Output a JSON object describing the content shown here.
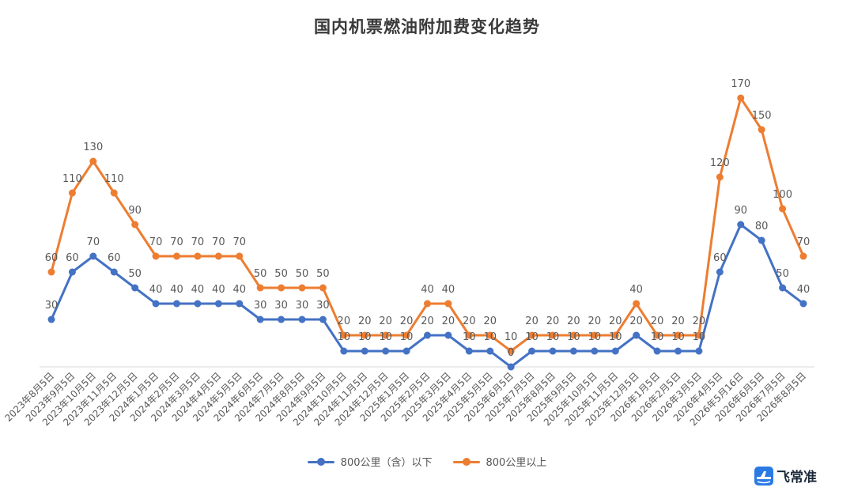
{
  "colors": {
    "series_1": "#4472c4",
    "series_2": "#ed7d31",
    "axis": "#d9d9d9",
    "label": "#595959"
  },
  "brand": {
    "name": "飞常准",
    "icon": "plane-logo-icon"
  },
  "chart_data": {
    "type": "line",
    "title": "国内机票燃油附加费变化趋势",
    "xlabel": "",
    "ylabel": "",
    "ylim": [
      0,
      170
    ],
    "grid": false,
    "legend_position": "bottom",
    "categories": [
      "2023年8月5日",
      "2023年9月5日",
      "2023年10月5日",
      "2023年11月5日",
      "2023年12月5日",
      "2024年1月5日",
      "2024年2月5日",
      "2024年3月5日",
      "2024年4月5日",
      "2024年5月5日",
      "2024年6月5日",
      "2024年7月5日",
      "2024年8月5日",
      "2024年9月5日",
      "2024年10月5日",
      "2024年11月5日",
      "2024年12月5日",
      "2025年1月5日",
      "2025年2月5日",
      "2025年3月5日",
      "2025年4月5日",
      "2025年5月5日",
      "2025年6月5日",
      "2025年7月5日",
      "2025年8月5日",
      "2025年9月5日",
      "2025年10月5日",
      "2025年11月5日",
      "2025年12月5日",
      "2026年1月5日",
      "2026年2月5日",
      "2026年3月5日",
      "2026年4月5日",
      "2026年5月16日",
      "2026年6月5日",
      "2026年7月5日",
      "2026年8月5日"
    ],
    "series": [
      {
        "name": "800公里（含）以下",
        "values": [
          30,
          60,
          70,
          60,
          50,
          40,
          40,
          40,
          40,
          40,
          30,
          30,
          30,
          30,
          10,
          10,
          10,
          10,
          20,
          20,
          10,
          10,
          0,
          10,
          10,
          10,
          10,
          10,
          20,
          10,
          10,
          10,
          60,
          90,
          80,
          50,
          40
        ]
      },
      {
        "name": "800公里以上",
        "values": [
          60,
          110,
          130,
          110,
          90,
          70,
          70,
          70,
          70,
          70,
          50,
          50,
          50,
          50,
          20,
          20,
          20,
          20,
          40,
          40,
          20,
          20,
          10,
          20,
          20,
          20,
          20,
          20,
          40,
          20,
          20,
          20,
          120,
          170,
          150,
          100,
          70
        ]
      }
    ]
  }
}
